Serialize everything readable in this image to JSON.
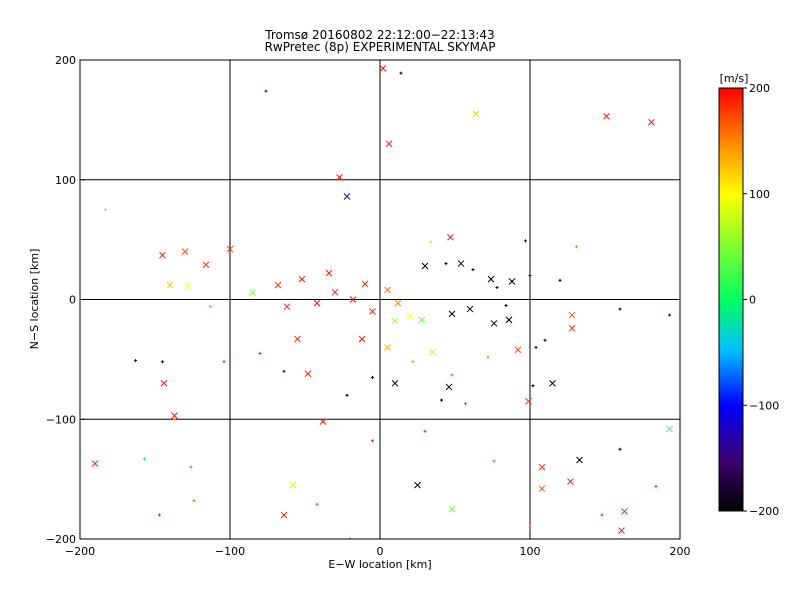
{
  "chart_data": {
    "type": "scatter",
    "title": "Tromsø 20160802 22:12:00−22:13:43",
    "subtitle": "RwPretec (8p) EXPERIMENTAL SKYMAP",
    "xlabel": "E−W location [km]",
    "ylabel": "N−S location [km]",
    "xlim": [
      -200,
      200
    ],
    "ylim": [
      -200,
      200
    ],
    "xticks": [
      "−200",
      "−100",
      "0",
      "100",
      "200"
    ],
    "yticks": [
      "200",
      "100",
      "0",
      "−100",
      "−200"
    ],
    "grid": true,
    "colorbar": {
      "label": "[m/s]",
      "range": [
        -200,
        200
      ],
      "ticks": [
        "200",
        "100",
        "0",
        "−100",
        "−200"
      ],
      "colormap": [
        "#000000",
        "#3a0070",
        "#0000ff",
        "#00c0ff",
        "#00ff60",
        "#ffff00",
        "#ff8000",
        "#ff0000"
      ]
    },
    "marker_legend": "x = large detection, + = small detection",
    "points": [
      [
        2,
        193,
        "x",
        190
      ],
      [
        14,
        189,
        "+",
        -200
      ],
      [
        -76,
        174,
        "+",
        -130
      ],
      [
        64,
        155,
        "x",
        120
      ],
      [
        151,
        153,
        "x",
        190
      ],
      [
        181,
        148,
        "x",
        190
      ],
      [
        6,
        130,
        "x",
        195
      ],
      [
        -27,
        102,
        "x",
        190
      ],
      [
        -22,
        86,
        "x",
        -130
      ],
      [
        -183,
        75,
        "+",
        40
      ],
      [
        -100,
        42,
        "x",
        180
      ],
      [
        -130,
        40,
        "x",
        170
      ],
      [
        -145,
        37,
        "x",
        190
      ],
      [
        -116,
        29,
        "x",
        180
      ],
      [
        -140,
        12,
        "x",
        120
      ],
      [
        -128,
        11,
        "x",
        100
      ],
      [
        -85,
        6,
        "x",
        50
      ],
      [
        -113,
        -6,
        "+",
        10
      ],
      [
        128,
        -13,
        "x",
        170
      ],
      [
        128,
        -24,
        "x",
        180
      ],
      [
        -163,
        -51,
        "+",
        -200
      ],
      [
        -145,
        -52,
        "+",
        -200
      ],
      [
        -104,
        -52,
        "+",
        180
      ],
      [
        -64,
        -60,
        "+",
        -120
      ],
      [
        -144,
        -70,
        "x",
        195
      ],
      [
        -137,
        -97,
        "x",
        195
      ],
      [
        -137,
        -100,
        "+",
        150
      ],
      [
        -190,
        -137,
        "x",
        190
      ],
      [
        -157,
        -133,
        "+",
        -20
      ],
      [
        -126,
        -140,
        "+",
        170
      ],
      [
        -147,
        -180,
        "+",
        190
      ],
      [
        -124,
        -168,
        "+",
        160
      ],
      [
        -58,
        -155,
        "x",
        80
      ],
      [
        -64,
        -180,
        "x",
        190
      ],
      [
        -42,
        -171,
        "+",
        170
      ],
      [
        -20,
        -200,
        "+",
        190
      ],
      [
        25,
        -155,
        "x",
        -200
      ],
      [
        48,
        -175,
        "x",
        40
      ],
      [
        76,
        -135,
        "+",
        160
      ],
      [
        108,
        -140,
        "x",
        180
      ],
      [
        108,
        -158,
        "x",
        170
      ],
      [
        127,
        -152,
        "x",
        190
      ],
      [
        133,
        -134,
        "x",
        -200
      ],
      [
        160,
        -125,
        "+",
        -200
      ],
      [
        193,
        -108,
        "x",
        20
      ],
      [
        184,
        -156,
        "+",
        180
      ],
      [
        163,
        -177,
        "x",
        190
      ],
      [
        161,
        -193,
        "x",
        190
      ],
      [
        148,
        -180,
        "+",
        180
      ],
      [
        100,
        -190,
        "+",
        170
      ],
      [
        99,
        -85,
        "x",
        180
      ],
      [
        115,
        -70,
        "x",
        -200
      ],
      [
        102,
        -72,
        "+",
        -200
      ],
      [
        92,
        -42,
        "x",
        180
      ],
      [
        104,
        -40,
        "+",
        -200
      ],
      [
        110,
        -34,
        "+",
        -200
      ],
      [
        160,
        -8,
        "+",
        -200
      ],
      [
        193,
        -13,
        "+",
        -120
      ],
      [
        100,
        20,
        "+",
        -200
      ],
      [
        97,
        49,
        "+",
        -200
      ],
      [
        131,
        44,
        "+",
        150
      ],
      [
        120,
        16,
        "+",
        -200
      ],
      [
        88,
        15,
        "x",
        -200
      ],
      [
        78,
        10,
        "+",
        -200
      ],
      [
        74,
        17,
        "x",
        -200
      ],
      [
        62,
        25,
        "+",
        -200
      ],
      [
        54,
        30,
        "x",
        -200
      ],
      [
        44,
        30,
        "+",
        -200
      ],
      [
        47,
        52,
        "x",
        190
      ],
      [
        34,
        48,
        "+",
        60
      ],
      [
        30,
        28,
        "x",
        -200
      ],
      [
        60,
        -8,
        "x",
        -200
      ],
      [
        76,
        -20,
        "x",
        -200
      ],
      [
        86,
        -17,
        "x",
        -200
      ],
      [
        84,
        -5,
        "+",
        -200
      ],
      [
        48,
        -12,
        "x",
        -200
      ],
      [
        41,
        -84,
        "+",
        -200
      ],
      [
        46,
        -73,
        "x",
        -200
      ],
      [
        10,
        -70,
        "x",
        -200
      ],
      [
        -5,
        -65,
        "+",
        -200
      ],
      [
        -22,
        -80,
        "+",
        -200
      ],
      [
        -55,
        -33,
        "x",
        180
      ],
      [
        -80,
        -45,
        "+",
        190
      ],
      [
        -62,
        -6,
        "x",
        190
      ],
      [
        -68,
        12,
        "x",
        180
      ],
      [
        -52,
        17,
        "x",
        190
      ],
      [
        -34,
        22,
        "x",
        190
      ],
      [
        -10,
        13,
        "x",
        190
      ],
      [
        5,
        8,
        "x",
        160
      ],
      [
        12,
        -3,
        "x",
        150
      ],
      [
        20,
        -14,
        "x",
        100
      ],
      [
        10,
        -18,
        "x",
        60
      ],
      [
        -5,
        -10,
        "x",
        190
      ],
      [
        -18,
        0,
        "x",
        190
      ],
      [
        -30,
        6,
        "x",
        190
      ],
      [
        -42,
        -3,
        "x",
        195
      ],
      [
        28,
        -17,
        "x",
        40
      ],
      [
        35,
        -44,
        "x",
        70
      ],
      [
        22,
        -52,
        "+",
        140
      ],
      [
        5,
        -40,
        "x",
        130
      ],
      [
        -12,
        -33,
        "x",
        190
      ],
      [
        48,
        -63,
        "+",
        160
      ],
      [
        72,
        -48,
        "+",
        150
      ],
      [
        57,
        -87,
        "+",
        175
      ],
      [
        30,
        -110,
        "+",
        180
      ],
      [
        -5,
        -118,
        "+",
        185
      ],
      [
        -38,
        -102,
        "x",
        190
      ],
      [
        -48,
        -62,
        "x",
        190
      ]
    ]
  }
}
